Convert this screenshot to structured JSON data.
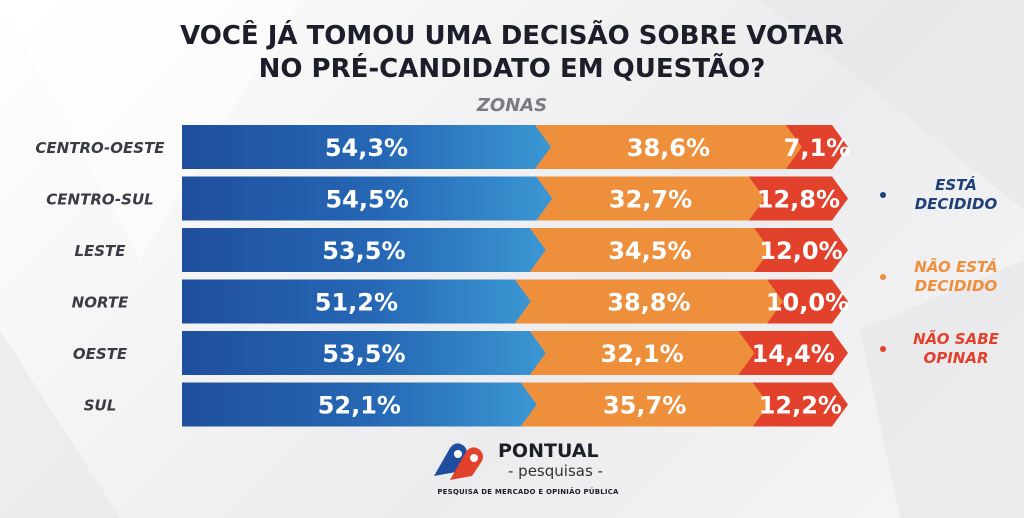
{
  "title_lines": [
    "VOCÊ JÁ TOMOU UMA DECISÃO SOBRE VOTAR",
    "NO PRÉ-CANDIDATO EM QUESTÃO?"
  ],
  "subtitle": "ZONAS",
  "colors": {
    "decidido_dark": "#1f4f9c",
    "decidido_light": "#3b97d3",
    "nao_decidido": "#ee8f3c",
    "nao_sabe": "#e2412c",
    "legend_decidido_text": "#1f3f7a"
  },
  "chart_data": {
    "type": "bar",
    "orientation": "horizontal",
    "stacked": true,
    "title": "VOCÊ JÁ TOMOU UMA DECISÃO SOBRE VOTAR NO PRÉ-CANDIDATO EM QUESTÃO?",
    "subtitle": "ZONAS",
    "categories": [
      "CENTRO-OESTE",
      "CENTRO-SUL",
      "LESTE",
      "NORTE",
      "OESTE",
      "SUL"
    ],
    "series": [
      {
        "name": "ESTÁ DECIDIDO",
        "values": [
          54.3,
          54.5,
          53.5,
          51.2,
          53.5,
          52.1
        ],
        "labels": [
          "54,3%",
          "54,5%",
          "53,5%",
          "51,2%",
          "53,5%",
          "52,1%"
        ]
      },
      {
        "name": "NÃO ESTÁ DECIDIDO",
        "values": [
          38.6,
          32.7,
          34.5,
          38.8,
          32.1,
          35.7
        ],
        "labels": [
          "38,6%",
          "32,7%",
          "34,5%",
          "38,8%",
          "32,1%",
          "35,7%"
        ]
      },
      {
        "name": "NÃO SABE OPINAR",
        "values": [
          7.1,
          12.8,
          12.0,
          10.0,
          14.4,
          12.2
        ],
        "labels": [
          "7,1%",
          "12,8%",
          "12,0%",
          "10,0%",
          "14,4%",
          "12,2%"
        ]
      }
    ],
    "xlim": [
      0,
      100
    ],
    "legend_position": "right",
    "grid": false
  },
  "legend": [
    {
      "text": "ESTÁ\nDECIDIDO",
      "color": "#1f3f7a"
    },
    {
      "text": "NÃO ESTÁ\nDECIDIDO",
      "color": "#ee8f3c"
    },
    {
      "text": "NÃO SABE\nOPINAR",
      "color": "#e2412c"
    }
  ],
  "logo": {
    "name": "PONTUAL",
    "sub": "- pesquisas -",
    "tagline": "PESQUISA DE MERCADO E OPINIÃO PÚBLICA"
  }
}
